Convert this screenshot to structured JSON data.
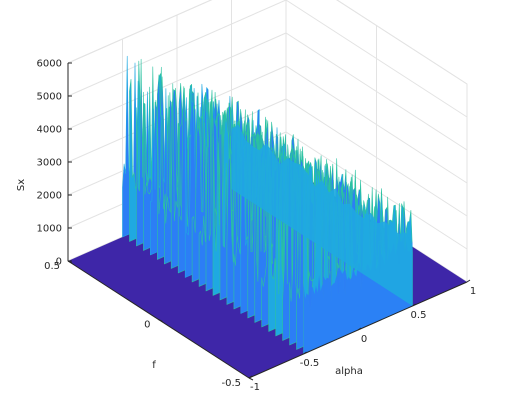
{
  "chart_data": {
    "type": "surface",
    "title": "",
    "zlabel": "Sx",
    "xlabel": "alpha",
    "ylabel": "f",
    "alpha_range": [
      -1,
      1
    ],
    "f_range": [
      -0.5,
      0.5
    ],
    "zlim": [
      0,
      6000
    ],
    "z_ticks": [
      "0",
      "1000",
      "2000",
      "3000",
      "4000",
      "5000",
      "6000"
    ],
    "alpha_ticks": [
      "-1",
      "-0.5",
      "0",
      "0.5",
      "1"
    ],
    "f_ticks": [
      "-0.5",
      "0",
      "0.5"
    ],
    "grid": true,
    "colormap": "parula",
    "colormap_colors": [
      "#3e26a8",
      "#4245e0",
      "#2c7ef5",
      "#1fa9e1",
      "#2bc2a0",
      "#81cc59",
      "#d9ba2e",
      "#fccd2f",
      "#f9fb15"
    ],
    "support": {
      "alpha": [
        -0.5,
        0.5
      ],
      "f": [
        -0.5,
        0.5
      ]
    },
    "envelope": [
      {
        "alpha": -0.5,
        "peak": 5700
      },
      {
        "alpha": -0.4,
        "peak": 5500
      },
      {
        "alpha": -0.3,
        "peak": 5200
      },
      {
        "alpha": -0.2,
        "peak": 4900
      },
      {
        "alpha": -0.1,
        "peak": 4600
      },
      {
        "alpha": 0.0,
        "peak": 4200
      },
      {
        "alpha": 0.1,
        "peak": 3900
      },
      {
        "alpha": 0.2,
        "peak": 3700
      },
      {
        "alpha": 0.3,
        "peak": 3500
      },
      {
        "alpha": 0.4,
        "peak": 3300
      },
      {
        "alpha": 0.5,
        "peak": 3100
      }
    ],
    "floor_level": 2000
  }
}
